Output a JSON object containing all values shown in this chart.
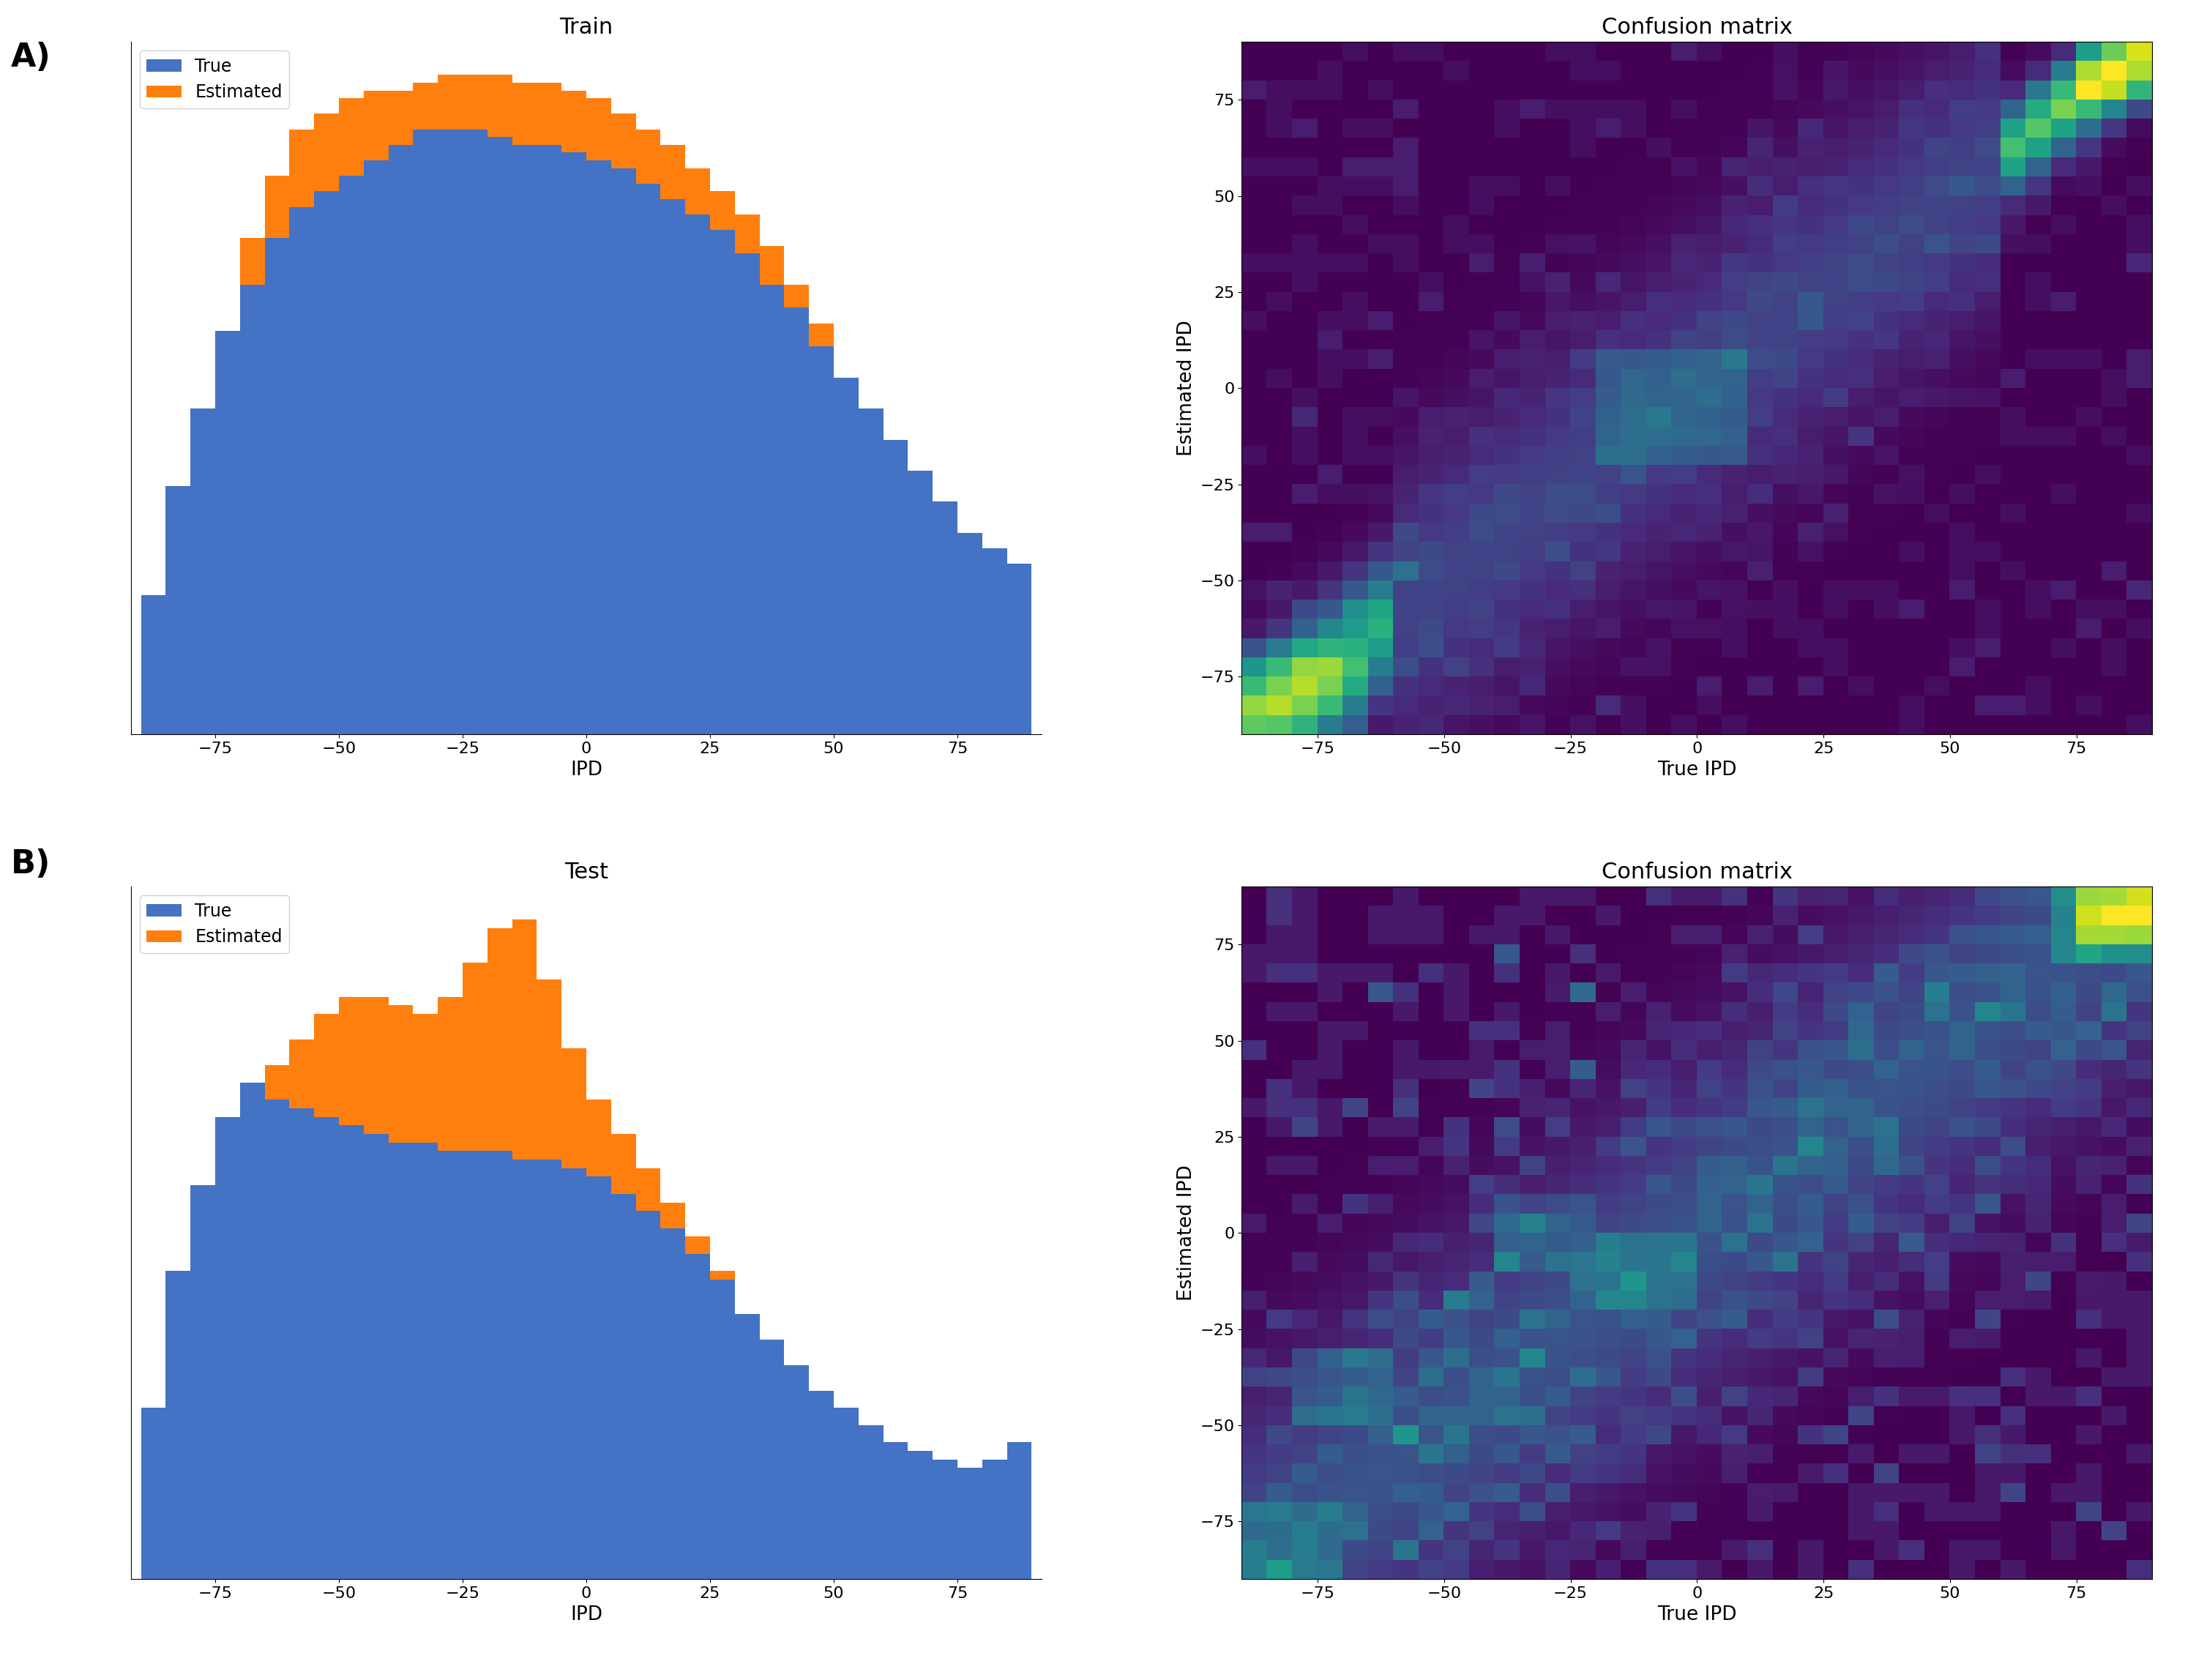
{
  "title_A_hist": "Train",
  "title_B_hist": "Test",
  "title_A_cm": "Confusion matrix",
  "title_B_cm": "Confusion matrix",
  "xlabel_hist": "IPD",
  "xlabel_cm": "True IPD",
  "ylabel_cm": "Estimated IPD",
  "label_A": "A)",
  "label_B": "B)",
  "legend_true": "True",
  "legend_estimated": "Estimated",
  "color_true": "#4472C4",
  "color_estimated": "#FF7F0E",
  "cmap": "viridis",
  "train_true_h": [
    18,
    32,
    42,
    52,
    58,
    64,
    68,
    70,
    72,
    74,
    76,
    78,
    78,
    78,
    77,
    76,
    76,
    75,
    74,
    73,
    71,
    69,
    67,
    65,
    62,
    58,
    55,
    50,
    46,
    42,
    38,
    34,
    30,
    26,
    24,
    22
  ],
  "train_est_h": [
    12,
    22,
    38,
    52,
    64,
    72,
    78,
    80,
    82,
    83,
    83,
    84,
    85,
    85,
    85,
    84,
    84,
    83,
    82,
    80,
    78,
    76,
    73,
    70,
    67,
    63,
    58,
    53,
    46,
    40,
    34,
    28,
    24,
    20,
    16,
    14
  ],
  "test_true_h": [
    20,
    36,
    46,
    54,
    58,
    56,
    55,
    54,
    53,
    52,
    51,
    51,
    50,
    50,
    50,
    49,
    49,
    48,
    47,
    45,
    43,
    41,
    38,
    35,
    31,
    28,
    25,
    22,
    20,
    18,
    16,
    15,
    14,
    13,
    14,
    16
  ],
  "test_est_h": [
    12,
    20,
    34,
    46,
    56,
    60,
    63,
    66,
    68,
    68,
    67,
    66,
    68,
    72,
    76,
    77,
    70,
    62,
    56,
    52,
    48,
    44,
    40,
    36,
    30,
    26,
    22,
    20,
    18,
    16,
    15,
    14,
    13,
    12,
    10,
    10
  ],
  "seed_train": 7,
  "seed_test": 13
}
